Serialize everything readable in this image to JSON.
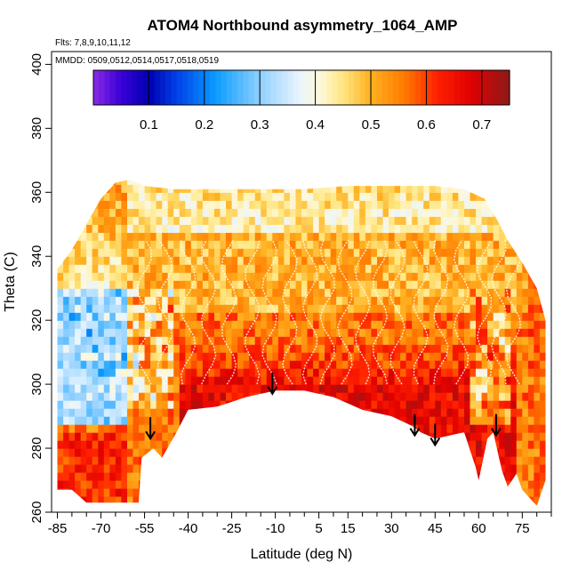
{
  "chart_data": {
    "type": "heatmap",
    "title": "ATOM4 Northbound asymmetry_1064_AMP",
    "subtitle_flights": "Flts: 7,8,9,10,11,12",
    "subtitle_dates": "MMDD: 0509,0512,0514,0517,0518,0519",
    "xlabel": "Latitude (deg N)",
    "ylabel": "Theta (C)",
    "xlim": [
      -87,
      85
    ],
    "ylim": [
      260,
      404
    ],
    "x_ticks": [
      -85,
      -70,
      -55,
      -40,
      -25,
      -10,
      5,
      15,
      30,
      45,
      60,
      75
    ],
    "x_tick_labels": [
      "-85",
      "-70",
      "-55",
      "-40",
      "-25",
      "-10",
      "5",
      "15",
      "30",
      "45",
      "60",
      "75"
    ],
    "x_minor_step": 5,
    "y_ticks": [
      260,
      280,
      300,
      320,
      340,
      360,
      380,
      400
    ],
    "y_tick_labels": [
      "260",
      "280",
      "300",
      "320",
      "340",
      "360",
      "380",
      "400"
    ],
    "colorbar": {
      "range": [
        0.0,
        0.75
      ],
      "ticks": [
        0.1,
        0.2,
        0.3,
        0.4,
        0.5,
        0.6,
        0.7
      ],
      "tick_labels": [
        "0.1",
        "0.2",
        "0.3",
        "0.4",
        "0.5",
        "0.6",
        "0.7"
      ],
      "color_stops": [
        {
          "value": 0.0,
          "color": "#8a2be2"
        },
        {
          "value": 0.05,
          "color": "#3a00d8"
        },
        {
          "value": 0.1,
          "color": "#0000b0"
        },
        {
          "value": 0.15,
          "color": "#0040e8"
        },
        {
          "value": 0.22,
          "color": "#0a9cff"
        },
        {
          "value": 0.3,
          "color": "#8fd0ff"
        },
        {
          "value": 0.37,
          "color": "#e8f4ff"
        },
        {
          "value": 0.41,
          "color": "#fff8d8"
        },
        {
          "value": 0.45,
          "color": "#ffe680"
        },
        {
          "value": 0.5,
          "color": "#ffb020"
        },
        {
          "value": 0.56,
          "color": "#ff7a00"
        },
        {
          "value": 0.62,
          "color": "#ff2000"
        },
        {
          "value": 0.68,
          "color": "#e00000"
        },
        {
          "value": 0.75,
          "color": "#8e1a1a"
        }
      ]
    },
    "field_description": {
      "lat_step": 2,
      "theta_step": 2.5,
      "top_boundary": [
        [
          -85,
          336
        ],
        [
          -80,
          342
        ],
        [
          -75,
          350
        ],
        [
          -70,
          358
        ],
        [
          -65,
          363
        ],
        [
          -60,
          364
        ],
        [
          -55,
          362
        ],
        [
          -45,
          361
        ],
        [
          -30,
          361
        ],
        [
          -15,
          361
        ],
        [
          0,
          361
        ],
        [
          15,
          362
        ],
        [
          30,
          362
        ],
        [
          45,
          362
        ],
        [
          55,
          361
        ],
        [
          62,
          358
        ],
        [
          66,
          352
        ],
        [
          70,
          345
        ],
        [
          75,
          338
        ],
        [
          80,
          330
        ],
        [
          83,
          320
        ]
      ],
      "bottom_boundary": [
        [
          -85,
          267
        ],
        [
          -80,
          267
        ],
        [
          -75,
          263
        ],
        [
          -70,
          263
        ],
        [
          -60,
          263
        ],
        [
          -57,
          263
        ],
        [
          -56,
          277
        ],
        [
          -52,
          280
        ],
        [
          -49,
          277
        ],
        [
          -44,
          285
        ],
        [
          -40,
          292
        ],
        [
          -30,
          293
        ],
        [
          -20,
          296
        ],
        [
          -10,
          298
        ],
        [
          0,
          298
        ],
        [
          10,
          296
        ],
        [
          20,
          292
        ],
        [
          30,
          290
        ],
        [
          37,
          287
        ],
        [
          40,
          285
        ],
        [
          45,
          283
        ],
        [
          50,
          284
        ],
        [
          55,
          285
        ],
        [
          59,
          274
        ],
        [
          60,
          270
        ],
        [
          63,
          283
        ],
        [
          65,
          285
        ],
        [
          68,
          273
        ],
        [
          70,
          268
        ],
        [
          73,
          272
        ],
        [
          75,
          267
        ],
        [
          78,
          264
        ],
        [
          80,
          262
        ],
        [
          83,
          270
        ]
      ],
      "value_rules": "blue/white (0.25-0.35) south of -60 above 290; orange (0.5) mid levels; red (0.62-0.68) near surface 275-310 from -40 to 70; pale yellow near 360 top"
    },
    "arrows": [
      {
        "lat": -53,
        "theta": 283
      },
      {
        "lat": -11,
        "theta": 297
      },
      {
        "lat": 38,
        "theta": 284
      },
      {
        "lat": 45,
        "theta": 281
      },
      {
        "lat": 66,
        "theta": 284
      }
    ]
  }
}
